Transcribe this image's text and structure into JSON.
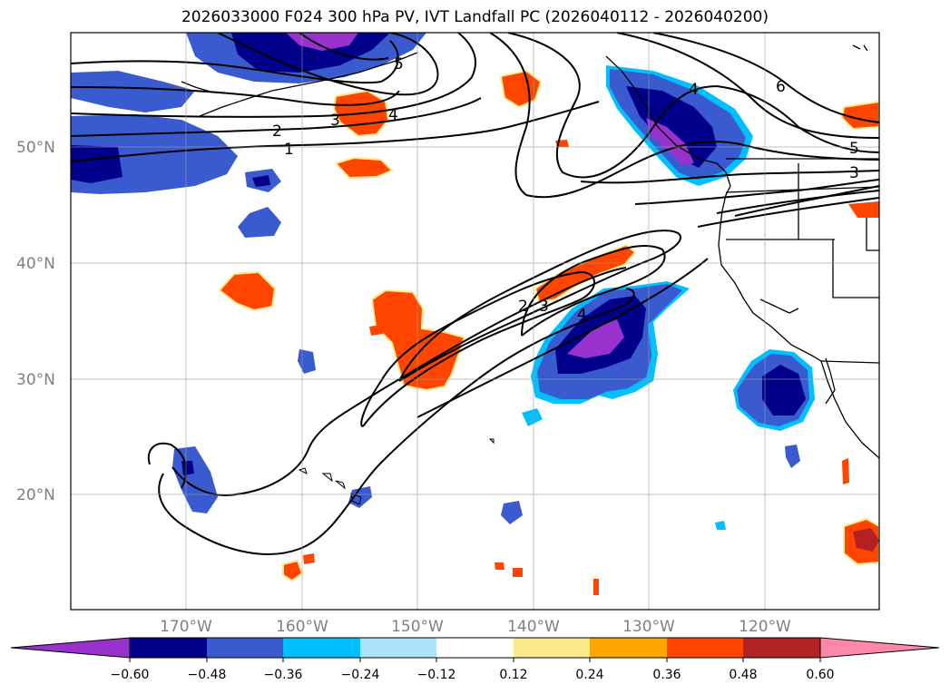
{
  "title": "2026033000 F024 300 hPa PV, IVT Landfall PC (2026040112 - 2026040200)",
  "lat_labels": [
    "50°N",
    "40°N",
    "30°N",
    "20°N"
  ],
  "lon_labels": [
    "170°W",
    "160°W",
    "150°W",
    "140°W",
    "130°W",
    "120°W"
  ],
  "pv_contour_labels": [
    "5",
    "4",
    "3",
    "2",
    "1",
    "4",
    "6",
    "5",
    "3",
    "2",
    "3",
    "4"
  ],
  "colorbar": {
    "ticks": [
      "−0.60",
      "−0.48",
      "−0.36",
      "−0.24",
      "−0.12",
      "0.12",
      "0.24",
      "0.36",
      "0.48",
      "0.60"
    ],
    "colors": [
      "#9932CC",
      "#00008B",
      "#3A5BD0",
      "#00BFFF",
      "#ADE3FA",
      "#FFFFFF",
      "#FCEA8C",
      "#FFA500",
      "#FF4500",
      "#B22222",
      "#FF88AA"
    ]
  }
}
